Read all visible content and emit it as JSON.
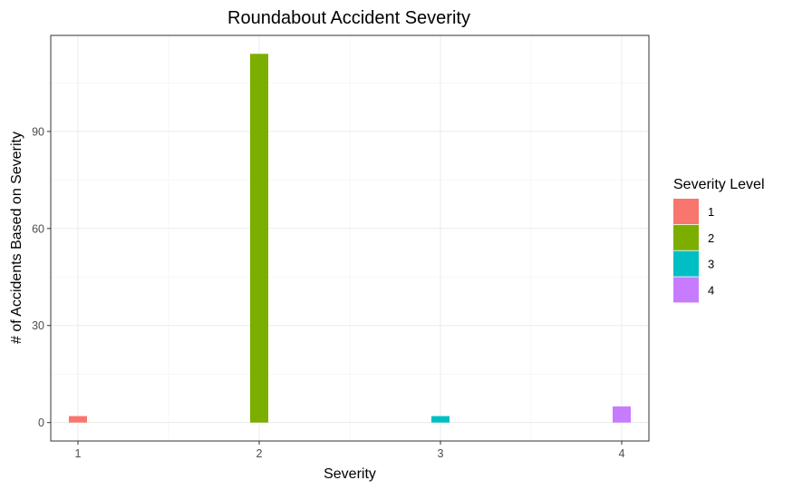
{
  "chart_data": {
    "type": "bar",
    "title": "Roundabout Accident Severity",
    "xlabel": "Severity",
    "ylabel": "# of Accidents Based on Severity",
    "categories": [
      "1",
      "2",
      "3",
      "4"
    ],
    "values": [
      2,
      114,
      2,
      5
    ],
    "colors": [
      "#F8766D",
      "#7CAE00",
      "#00BFC4",
      "#C77CFF"
    ],
    "ylim": [
      -5.7,
      119.7
    ],
    "y_ticks": [
      0,
      30,
      60,
      90
    ],
    "grid": true,
    "legend": {
      "title": "Severity Level",
      "position": "right",
      "entries": [
        "1",
        "2",
        "3",
        "4"
      ]
    }
  }
}
